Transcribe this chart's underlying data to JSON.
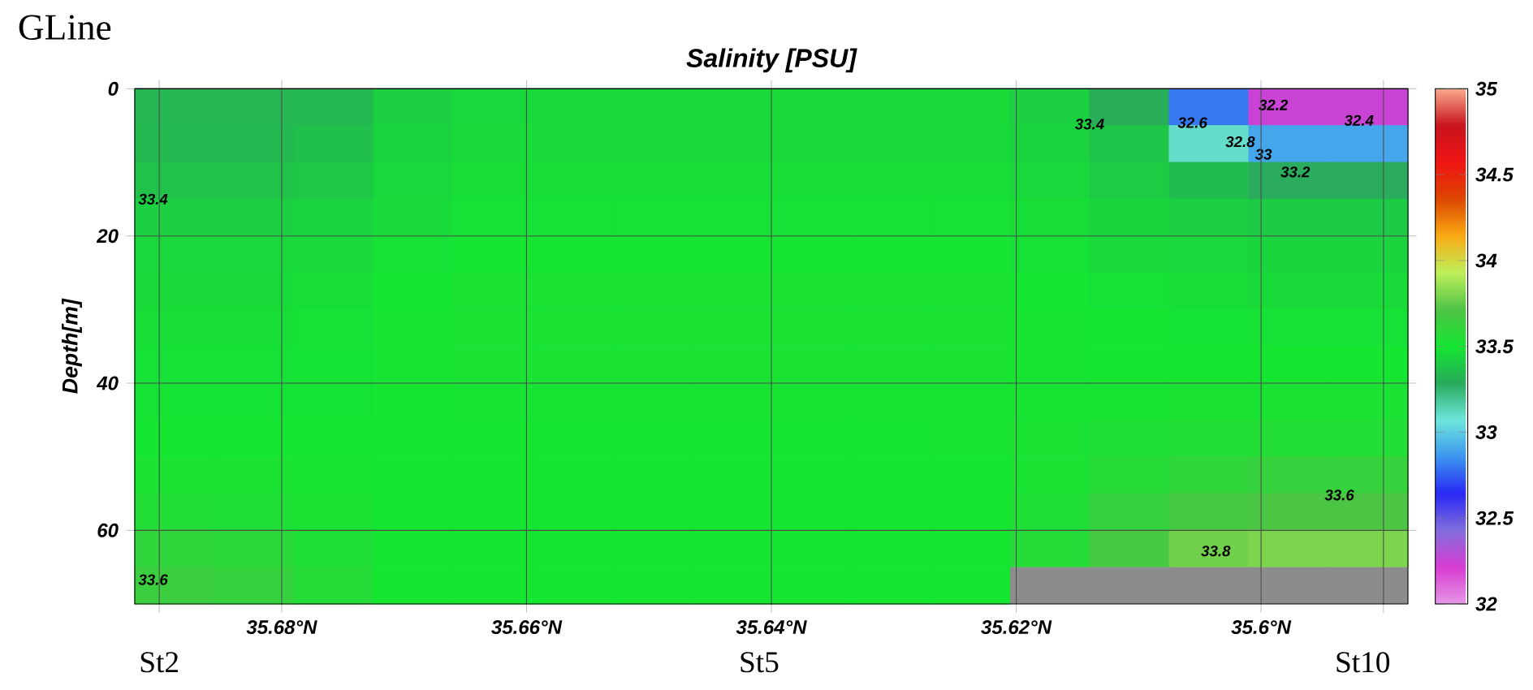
{
  "chart_data": {
    "type": "heatmap",
    "title": "Salinity [PSU]",
    "ylabel": "Depth[m]",
    "x": [
      35.68875,
      35.68225,
      35.67575,
      35.66925,
      35.66275,
      35.65625,
      35.64975,
      35.64325,
      35.63675,
      35.63025,
      35.62375,
      35.61725,
      35.61075,
      35.60425,
      35.59775,
      35.59125
    ],
    "y": [
      2.5,
      7.5,
      12.5,
      17.5,
      22.5,
      27.5,
      32.5,
      37.5,
      42.5,
      47.5,
      52.5,
      57.5,
      62.5,
      67.5
    ],
    "xlim": [
      35.692,
      35.588
    ],
    "ylim": [
      70,
      0
    ],
    "xticks": [
      {
        "value": 35.69,
        "label": null
      },
      {
        "value": 35.68,
        "label": "35.68°N"
      },
      {
        "value": 35.66,
        "label": "35.66°N"
      },
      {
        "value": 35.64,
        "label": "35.64°N"
      },
      {
        "value": 35.62,
        "label": "35.62°N"
      },
      {
        "value": 35.6,
        "label": "35.6°N"
      },
      {
        "value": 35.59,
        "label": null
      }
    ],
    "yticks": [
      0,
      20,
      40,
      60
    ],
    "grid": true,
    "clim": [
      32,
      35
    ],
    "cticks": [
      32,
      32.5,
      33,
      33.5,
      34,
      34.5,
      35
    ],
    "cells": [
      [
        33.33,
        33.33,
        33.34,
        33.42,
        33.45,
        33.46,
        33.46,
        33.46,
        33.46,
        33.46,
        33.46,
        33.42,
        33.3,
        32.8,
        32.25,
        32.25
      ],
      [
        33.34,
        33.34,
        33.36,
        33.43,
        33.46,
        33.46,
        33.46,
        33.46,
        33.46,
        33.46,
        33.46,
        33.43,
        33.38,
        33.1,
        32.9,
        32.9
      ],
      [
        33.37,
        33.37,
        33.39,
        33.45,
        33.47,
        33.47,
        33.47,
        33.47,
        33.47,
        33.47,
        33.47,
        33.45,
        33.41,
        33.35,
        33.28,
        33.28
      ],
      [
        33.42,
        33.42,
        33.43,
        33.46,
        33.48,
        33.48,
        33.48,
        33.48,
        33.48,
        33.48,
        33.48,
        33.47,
        33.44,
        33.42,
        33.4,
        33.4
      ],
      [
        33.45,
        33.45,
        33.46,
        33.48,
        33.5,
        33.5,
        33.5,
        33.5,
        33.5,
        33.5,
        33.5,
        33.48,
        33.46,
        33.45,
        33.44,
        33.44
      ],
      [
        33.46,
        33.46,
        33.47,
        33.5,
        33.52,
        33.52,
        33.52,
        33.52,
        33.52,
        33.52,
        33.52,
        33.5,
        33.48,
        33.47,
        33.46,
        33.46
      ],
      [
        33.47,
        33.47,
        33.48,
        33.51,
        33.52,
        33.52,
        33.52,
        33.52,
        33.52,
        33.52,
        33.52,
        33.51,
        33.5,
        33.49,
        33.48,
        33.48
      ],
      [
        33.48,
        33.48,
        33.49,
        33.51,
        33.52,
        33.52,
        33.52,
        33.52,
        33.52,
        33.52,
        33.52,
        33.51,
        33.5,
        33.5,
        33.5,
        33.5
      ],
      [
        33.49,
        33.49,
        33.49,
        33.5,
        33.51,
        33.51,
        33.51,
        33.51,
        33.51,
        33.51,
        33.51,
        33.51,
        33.51,
        33.52,
        33.52,
        33.52
      ],
      [
        33.5,
        33.5,
        33.5,
        33.5,
        33.5,
        33.5,
        33.5,
        33.5,
        33.5,
        33.5,
        33.51,
        33.52,
        33.54,
        33.55,
        33.55,
        33.55
      ],
      [
        33.52,
        33.52,
        33.51,
        33.5,
        33.5,
        33.5,
        33.5,
        33.5,
        33.5,
        33.5,
        33.5,
        33.52,
        33.56,
        33.6,
        33.62,
        33.62
      ],
      [
        33.55,
        33.54,
        33.52,
        33.5,
        33.5,
        33.5,
        33.5,
        33.5,
        33.5,
        33.5,
        33.5,
        33.54,
        33.62,
        33.68,
        33.7,
        33.7
      ],
      [
        33.6,
        33.58,
        33.54,
        33.5,
        33.5,
        33.5,
        33.5,
        33.5,
        33.5,
        33.5,
        33.5,
        33.56,
        33.68,
        33.78,
        33.8,
        33.8
      ],
      [
        33.64,
        33.62,
        33.56,
        33.5,
        33.5,
        33.5,
        33.5,
        33.5,
        33.5,
        33.5,
        33.5,
        null,
        null,
        null,
        null,
        null
      ]
    ],
    "annotations": [
      "GLine",
      "33.4",
      "33.6",
      "33.4",
      "32.2",
      "32.4",
      "32.6",
      "32.8",
      "33",
      "33.2",
      "33.6",
      "33.8",
      "St2",
      "St5",
      "St10"
    ]
  }
}
